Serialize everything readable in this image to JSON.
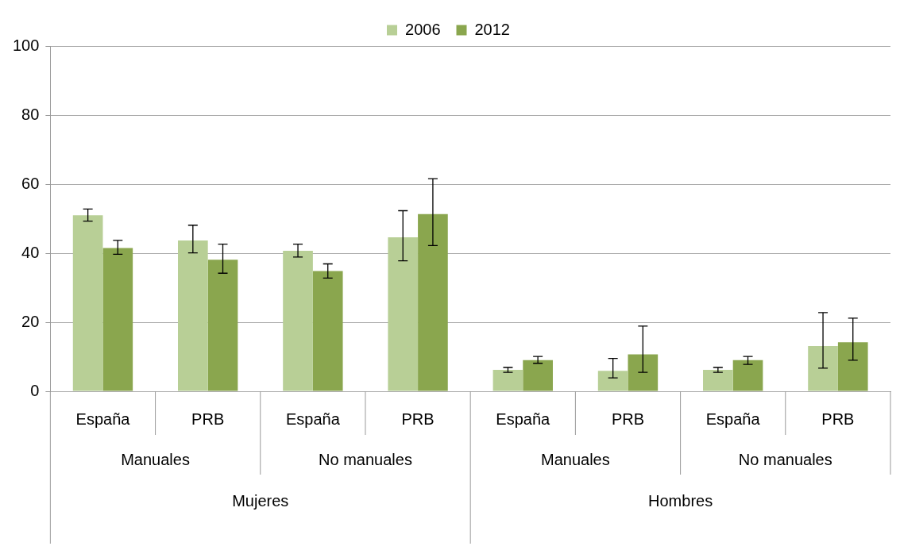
{
  "chart_data": {
    "type": "bar",
    "categories": [
      "España",
      "PRB",
      "España",
      "PRB",
      "España",
      "PRB",
      "España",
      "PRB"
    ],
    "series": [
      {
        "name": "2006",
        "color": "#b8cf96",
        "values": [
          51.0,
          43.7,
          40.7,
          44.6,
          6.2,
          5.9,
          6.2,
          13.1
        ],
        "errors": [
          [
            49.3,
            52.8
          ],
          [
            40.1,
            48.1
          ],
          [
            38.9,
            42.6
          ],
          [
            37.8,
            52.3
          ],
          [
            5.5,
            6.9
          ],
          [
            3.9,
            9.5
          ],
          [
            5.5,
            6.9
          ],
          [
            6.7,
            22.8
          ]
        ]
      },
      {
        "name": "2012",
        "color": "#8aa64e",
        "values": [
          41.5,
          38.1,
          34.8,
          51.3,
          9.0,
          10.7,
          9.0,
          14.2
        ],
        "errors": [
          [
            39.7,
            43.7
          ],
          [
            34.2,
            42.6
          ],
          [
            32.8,
            36.9
          ],
          [
            42.2,
            61.6
          ],
          [
            8.1,
            10.1
          ],
          [
            5.5,
            18.9
          ],
          [
            7.8,
            10.1
          ],
          [
            9.0,
            21.2
          ]
        ]
      }
    ],
    "annotations": [
      "Manuales",
      "No manuales",
      "Manuales",
      "No manuales",
      "Mujeres",
      "Hombres"
    ],
    "ylim": [
      0,
      100
    ],
    "yticks": [
      0,
      20,
      40,
      60,
      80,
      100
    ],
    "grid": "y",
    "legend": "top"
  }
}
